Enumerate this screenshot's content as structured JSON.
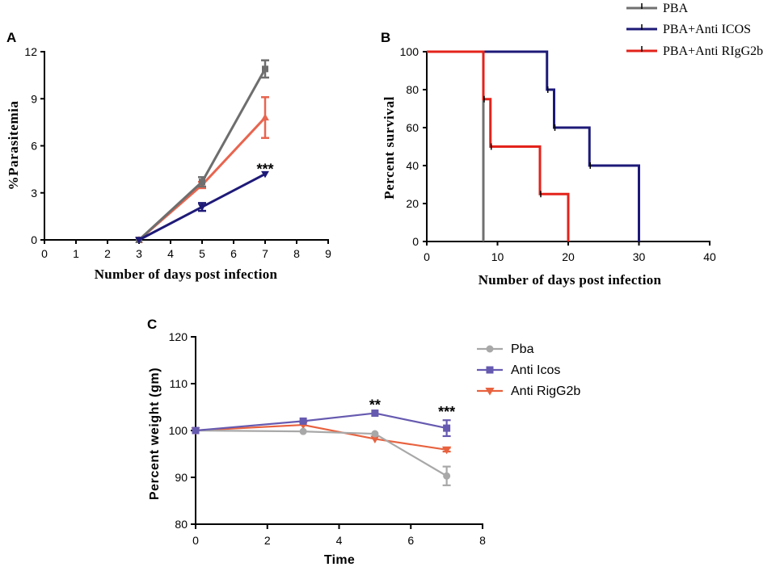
{
  "chart_data": [
    {
      "panel_label": "A",
      "type": "line",
      "xlabel": "Number of days post infection",
      "ylabel": "%Parasitemia",
      "xlim": [
        0,
        9
      ],
      "ylim": [
        0,
        12
      ],
      "xticks": [
        0,
        1,
        2,
        3,
        4,
        5,
        6,
        7,
        8,
        9
      ],
      "yticks": [
        0,
        3,
        6,
        9,
        12
      ],
      "series": [
        {
          "legend_index": 0,
          "color": "#6e6e6e",
          "marker": "square",
          "x": [
            3,
            5,
            7
          ],
          "y": [
            0,
            3.7,
            10.9
          ],
          "err": [
            0,
            0.3,
            0.55
          ]
        },
        {
          "legend_index": 1,
          "color": "#1e1a78",
          "marker": "triangle-down",
          "x": [
            3,
            5,
            7
          ],
          "y": [
            0,
            2.1,
            4.2
          ],
          "err": [
            0,
            0.25,
            0
          ]
        },
        {
          "legend_index": 2,
          "color": "#e8654f",
          "marker": "triangle-up",
          "x": [
            3,
            5,
            7
          ],
          "y": [
            0,
            3.5,
            7.8
          ],
          "err": [
            0,
            0.2,
            1.3
          ]
        }
      ],
      "annotations": [
        {
          "text": "***",
          "x": 7,
          "series_index": 1
        }
      ]
    },
    {
      "panel_label": "B",
      "type": "line",
      "step": true,
      "xlabel": "Number of days post infection",
      "ylabel": "Percent survival",
      "xlim": [
        0,
        40
      ],
      "ylim": [
        0,
        100
      ],
      "xticks": [
        0,
        10,
        20,
        30,
        40
      ],
      "yticks": [
        0,
        20,
        40,
        60,
        80,
        100
      ],
      "legend": [
        "PBA",
        "PBA+Anti ICOS",
        "PBA+Anti RIgG2b"
      ],
      "legend_position": "top-right",
      "series": [
        {
          "legend_index": 0,
          "color": "#707070",
          "x": [
            0,
            8
          ],
          "y": [
            100,
            0
          ]
        },
        {
          "legend_index": 1,
          "color": "#1d1a78",
          "x": [
            0,
            17,
            18,
            23,
            30
          ],
          "y": [
            100,
            80,
            60,
            40,
            0
          ]
        },
        {
          "legend_index": 2,
          "color": "#e3231b",
          "x": [
            0,
            8,
            9,
            16,
            20
          ],
          "y": [
            100,
            75,
            50,
            25,
            0
          ]
        }
      ]
    },
    {
      "panel_label": "C",
      "type": "line",
      "xlabel": "Time",
      "ylabel": "Percent weight (gm)",
      "xlim": [
        0,
        8
      ],
      "ylim": [
        80,
        120
      ],
      "xticks": [
        0,
        2,
        4,
        6,
        8
      ],
      "yticks": [
        80,
        90,
        100,
        110,
        120
      ],
      "legend_position": "right",
      "series": [
        {
          "name": "Pba",
          "color": "#a8a8a8",
          "marker": "circle",
          "x": [
            0,
            3,
            5,
            7
          ],
          "y": [
            100,
            99.8,
            99.3,
            90.3
          ],
          "err": [
            0,
            0,
            0,
            2.0
          ]
        },
        {
          "name": "Anti Icos",
          "color": "#665ab0",
          "marker": "square",
          "x": [
            0,
            3,
            5,
            7
          ],
          "y": [
            100,
            102,
            103.7,
            100.5
          ],
          "err": [
            0,
            0,
            0,
            1.7
          ]
        },
        {
          "name": "Anti RigG2b",
          "color": "#e8623f",
          "marker": "triangle-down",
          "x": [
            0,
            3,
            5,
            7
          ],
          "y": [
            100,
            101.2,
            98.2,
            95.9
          ],
          "err": [
            0,
            0,
            0,
            0.4
          ]
        }
      ],
      "annotations": [
        {
          "text": "**",
          "x": 5,
          "series_index": 1
        },
        {
          "text": "***",
          "x": 7,
          "series_index": 1
        }
      ]
    }
  ]
}
